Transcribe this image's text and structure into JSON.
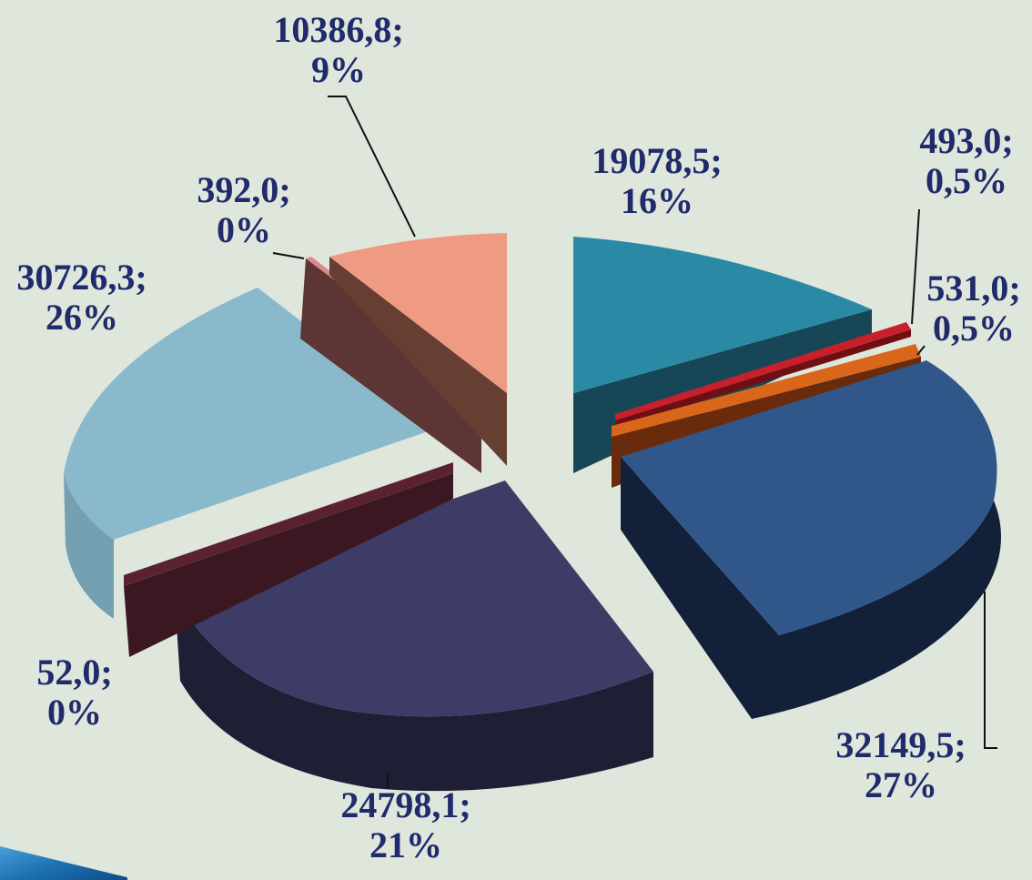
{
  "chart_data": {
    "type": "pie",
    "variant": "3d-exploded",
    "title": "",
    "legend": "none",
    "slices": [
      {
        "value": "19078,5",
        "pct": "16%",
        "color": "#2a8aa6",
        "side": "#174657"
      },
      {
        "value": "493,0",
        "pct": "0,5%",
        "color": "#c8202a",
        "side": "#6e0f14"
      },
      {
        "value": "531,0",
        "pct": "0,5%",
        "color": "#d9661b",
        "side": "#6a2a0c"
      },
      {
        "value": "32149,5",
        "pct": "27%",
        "color": "#31578a",
        "side": "#122039"
      },
      {
        "value": "24798,1",
        "pct": "21%",
        "color": "#3d3c66",
        "side": "#1e1e34"
      },
      {
        "value": "52,0",
        "pct": "0%",
        "color": "#5a2230",
        "side": "#3b1821"
      },
      {
        "value": "30726,3",
        "pct": "26%",
        "color": "#8bb9cc",
        "side": "#75a0b2"
      },
      {
        "value": "392,0",
        "pct": "0%",
        "color": "#d98a8a",
        "side": "#5e3535"
      },
      {
        "value": "10386,8",
        "pct": "9%",
        "color": "#ef9a83",
        "side": "#663f32"
      }
    ]
  }
}
